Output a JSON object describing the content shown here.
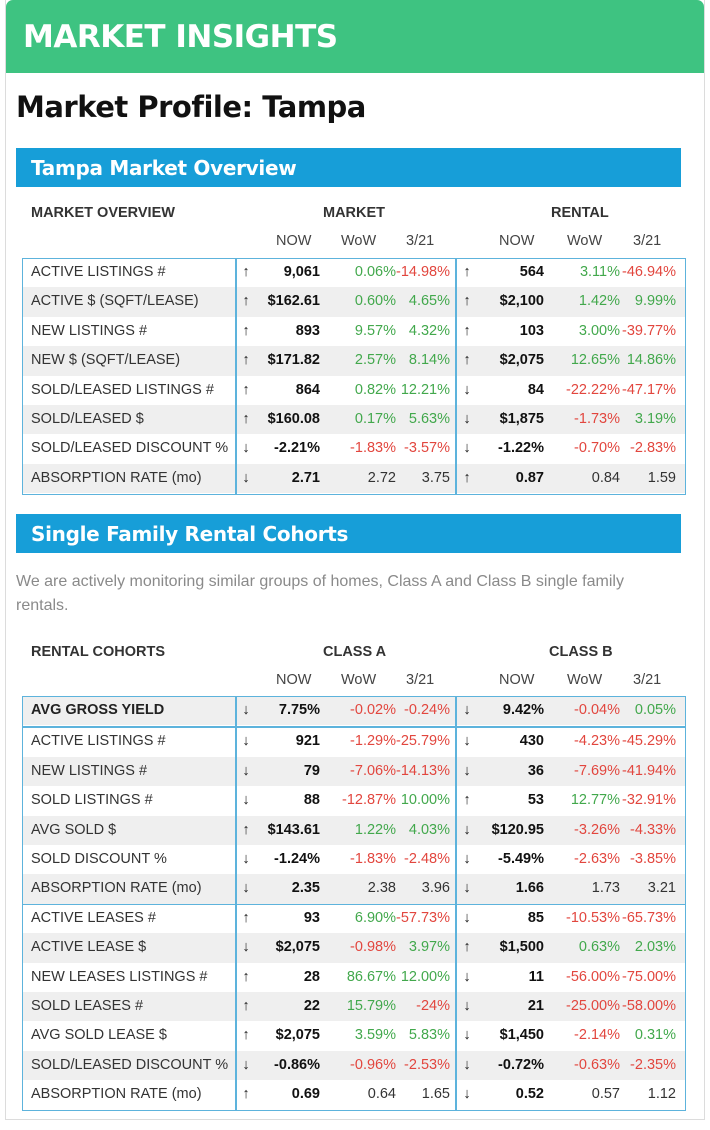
{
  "banner": {
    "title": "MARKET INSIGHTS"
  },
  "page_title": "Market Profile: Tampa",
  "overview": {
    "section_title": "Tampa Market Overview",
    "header": {
      "label": "MARKET OVERVIEW",
      "group_a": "MARKET",
      "group_b": "RENTAL",
      "cols_a": [
        "NOW",
        "WoW",
        "3/21"
      ],
      "cols_b": [
        "NOW",
        "WoW",
        "3/21"
      ]
    },
    "rows": [
      {
        "label": "ACTIVE LISTINGS #",
        "a_arrow": "↑",
        "a_now": "9,061",
        "a_wow": "0.06%",
        "a_wow_s": "pos",
        "a_m": "-14.98%",
        "a_m_s": "neg",
        "b_arrow": "↑",
        "b_now": "564",
        "b_wow": "3.11%",
        "b_wow_s": "pos",
        "b_m": "-46.94%",
        "b_m_s": "neg"
      },
      {
        "label": "ACTIVE $ (SQFT/LEASE)",
        "a_arrow": "↑",
        "a_now": "$162.61",
        "a_wow": "0.60%",
        "a_wow_s": "pos",
        "a_m": "4.65%",
        "a_m_s": "pos",
        "b_arrow": "↑",
        "b_now": "$2,100",
        "b_wow": "1.42%",
        "b_wow_s": "pos",
        "b_m": "9.99%",
        "b_m_s": "pos"
      },
      {
        "label": "NEW LISTINGS #",
        "a_arrow": "↑",
        "a_now": "893",
        "a_wow": "9.57%",
        "a_wow_s": "pos",
        "a_m": "4.32%",
        "a_m_s": "pos",
        "b_arrow": "↑",
        "b_now": "103",
        "b_wow": "3.00%",
        "b_wow_s": "pos",
        "b_m": "-39.77%",
        "b_m_s": "neg"
      },
      {
        "label": "NEW $ (SQFT/LEASE)",
        "a_arrow": "↑",
        "a_now": "$171.82",
        "a_wow": "2.57%",
        "a_wow_s": "pos",
        "a_m": "8.14%",
        "a_m_s": "pos",
        "b_arrow": "↑",
        "b_now": "$2,075",
        "b_wow": "12.65%",
        "b_wow_s": "pos",
        "b_m": "14.86%",
        "b_m_s": "pos"
      },
      {
        "label": "SOLD/LEASED LISTINGS #",
        "a_arrow": "↑",
        "a_now": "864",
        "a_wow": "0.82%",
        "a_wow_s": "pos",
        "a_m": "12.21%",
        "a_m_s": "pos",
        "b_arrow": "↓",
        "b_now": "84",
        "b_wow": "-22.22%",
        "b_wow_s": "neg",
        "b_m": "-47.17%",
        "b_m_s": "neg"
      },
      {
        "label": "SOLD/LEASED $",
        "a_arrow": "↑",
        "a_now": "$160.08",
        "a_wow": "0.17%",
        "a_wow_s": "pos",
        "a_m": "5.63%",
        "a_m_s": "pos",
        "b_arrow": "↓",
        "b_now": "$1,875",
        "b_wow": "-1.73%",
        "b_wow_s": "neg",
        "b_m": "3.19%",
        "b_m_s": "pos"
      },
      {
        "label": "SOLD/LEASED DISCOUNT %",
        "a_arrow": "↓",
        "a_now": "-2.21%",
        "a_wow": "-1.83%",
        "a_wow_s": "neg",
        "a_m": "-3.57%",
        "a_m_s": "neg",
        "b_arrow": "↓",
        "b_now": "-1.22%",
        "b_wow": "-0.70%",
        "b_wow_s": "neg",
        "b_m": "-2.83%",
        "b_m_s": "neg"
      },
      {
        "label": "ABSORPTION RATE (mo)",
        "a_arrow": "↓",
        "a_now": "2.71",
        "a_wow": "2.72",
        "a_wow_s": "neu",
        "a_m": "3.75",
        "a_m_s": "neu",
        "b_arrow": "↑",
        "b_now": "0.87",
        "b_wow": "0.84",
        "b_wow_s": "neu",
        "b_m": "1.59",
        "b_m_s": "neu"
      }
    ]
  },
  "cohorts": {
    "section_title": "Single Family Rental Cohorts",
    "intro": "We are actively monitoring similar groups of homes, Class A and Class B single family rentals.",
    "header": {
      "label": "RENTAL COHORTS",
      "group_a": "CLASS A",
      "group_b": "CLASS B",
      "cols_a": [
        "NOW",
        "WoW",
        "3/21"
      ],
      "cols_b": [
        "NOW",
        "WoW",
        "3/21"
      ]
    },
    "yield_row": {
      "label": "AVG GROSS YIELD",
      "a_arrow": "↓",
      "a_now": "7.75%",
      "a_wow": "-0.02%",
      "a_wow_s": "neg",
      "a_m": "-0.24%",
      "a_m_s": "neg",
      "b_arrow": "↓",
      "b_now": "9.42%",
      "b_wow": "-0.04%",
      "b_wow_s": "neg",
      "b_m": "0.05%",
      "b_m_s": "pos"
    },
    "listing_rows": [
      {
        "label": "ACTIVE LISTINGS #",
        "a_arrow": "↓",
        "a_now": "921",
        "a_wow": "-1.29%",
        "a_wow_s": "neg",
        "a_m": "-25.79%",
        "a_m_s": "neg",
        "b_arrow": "↓",
        "b_now": "430",
        "b_wow": "-4.23%",
        "b_wow_s": "neg",
        "b_m": "-45.29%",
        "b_m_s": "neg"
      },
      {
        "label": "NEW LISTINGS #",
        "a_arrow": "↓",
        "a_now": "79",
        "a_wow": "-7.06%",
        "a_wow_s": "neg",
        "a_m": "-14.13%",
        "a_m_s": "neg",
        "b_arrow": "↓",
        "b_now": "36",
        "b_wow": "-7.69%",
        "b_wow_s": "neg",
        "b_m": "-41.94%",
        "b_m_s": "neg"
      },
      {
        "label": "SOLD LISTINGS #",
        "a_arrow": "↓",
        "a_now": "88",
        "a_wow": "-12.87%",
        "a_wow_s": "neg",
        "a_m": "10.00%",
        "a_m_s": "pos",
        "b_arrow": "↑",
        "b_now": "53",
        "b_wow": "12.77%",
        "b_wow_s": "pos",
        "b_m": "-32.91%",
        "b_m_s": "neg"
      },
      {
        "label": "AVG SOLD $",
        "a_arrow": "↑",
        "a_now": "$143.61",
        "a_wow": "1.22%",
        "a_wow_s": "pos",
        "a_m": "4.03%",
        "a_m_s": "pos",
        "b_arrow": "↓",
        "b_now": "$120.95",
        "b_wow": "-3.26%",
        "b_wow_s": "neg",
        "b_m": "-4.33%",
        "b_m_s": "neg"
      },
      {
        "label": "SOLD DISCOUNT %",
        "a_arrow": "↓",
        "a_now": "-1.24%",
        "a_wow": "-1.83%",
        "a_wow_s": "neg",
        "a_m": "-2.48%",
        "a_m_s": "neg",
        "b_arrow": "↓",
        "b_now": "-5.49%",
        "b_wow": "-2.63%",
        "b_wow_s": "neg",
        "b_m": "-3.85%",
        "b_m_s": "neg"
      },
      {
        "label": "ABSORPTION RATE (mo)",
        "a_arrow": "↓",
        "a_now": "2.35",
        "a_wow": "2.38",
        "a_wow_s": "neu",
        "a_m": "3.96",
        "a_m_s": "neu",
        "b_arrow": "↓",
        "b_now": "1.66",
        "b_wow": "1.73",
        "b_wow_s": "neu",
        "b_m": "3.21",
        "b_m_s": "neu"
      }
    ],
    "lease_rows": [
      {
        "label": "ACTIVE LEASES #",
        "a_arrow": "↑",
        "a_now": "93",
        "a_wow": "6.90%",
        "a_wow_s": "pos",
        "a_m": "-57.73%",
        "a_m_s": "neg",
        "b_arrow": "↓",
        "b_now": "85",
        "b_wow": "-10.53%",
        "b_wow_s": "neg",
        "b_m": "-65.73%",
        "b_m_s": "neg"
      },
      {
        "label": "ACTIVE LEASE $",
        "a_arrow": "↓",
        "a_now": "$2,075",
        "a_wow": "-0.98%",
        "a_wow_s": "neg",
        "a_m": "3.97%",
        "a_m_s": "pos",
        "b_arrow": "↑",
        "b_now": "$1,500",
        "b_wow": "0.63%",
        "b_wow_s": "pos",
        "b_m": "2.03%",
        "b_m_s": "pos"
      },
      {
        "label": "NEW LEASES LISTINGS #",
        "a_arrow": "↑",
        "a_now": "28",
        "a_wow": "86.67%",
        "a_wow_s": "pos",
        "a_m": "12.00%",
        "a_m_s": "pos",
        "b_arrow": "↓",
        "b_now": "11",
        "b_wow": "-56.00%",
        "b_wow_s": "neg",
        "b_m": "-75.00%",
        "b_m_s": "neg"
      },
      {
        "label": "SOLD LEASES #",
        "a_arrow": "↑",
        "a_now": "22",
        "a_wow": "15.79%",
        "a_wow_s": "pos",
        "a_m": "-24%",
        "a_m_s": "neg",
        "b_arrow": "↓",
        "b_now": "21",
        "b_wow": "-25.00%",
        "b_wow_s": "neg",
        "b_m": "-58.00%",
        "b_m_s": "neg"
      },
      {
        "label": "AVG SOLD LEASE $",
        "a_arrow": "↑",
        "a_now": "$2,075",
        "a_wow": "3.59%",
        "a_wow_s": "pos",
        "a_m": "5.83%",
        "a_m_s": "pos",
        "b_arrow": "↓",
        "b_now": "$1,450",
        "b_wow": "-2.14%",
        "b_wow_s": "neg",
        "b_m": "0.31%",
        "b_m_s": "pos"
      },
      {
        "label": "SOLD/LEASED DISCOUNT %",
        "a_arrow": "↓",
        "a_now": "-0.86%",
        "a_wow": "-0.96%",
        "a_wow_s": "neg",
        "a_m": "-2.53%",
        "a_m_s": "neg",
        "b_arrow": "↓",
        "b_now": "-0.72%",
        "b_wow": "-0.63%",
        "b_wow_s": "neg",
        "b_m": "-2.35%",
        "b_m_s": "neg"
      },
      {
        "label": "ABSORPTION RATE (mo)",
        "a_arrow": "↑",
        "a_now": "0.69",
        "a_wow": "0.64",
        "a_wow_s": "neu",
        "a_m": "1.65",
        "a_m_s": "neu",
        "b_arrow": "↓",
        "b_now": "0.52",
        "b_wow": "0.57",
        "b_wow_s": "neu",
        "b_m": "1.12",
        "b_m_s": "neu"
      }
    ]
  }
}
